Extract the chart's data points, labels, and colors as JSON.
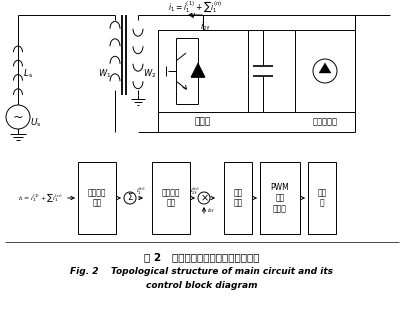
{
  "title_chinese": "图 2   主电路的拓扑结构及其控制框图",
  "title_english_line1": "Fig. 2    Topological structure of main circuit and its",
  "title_english_line2": "control block diagram",
  "bg_color": "#ffffff",
  "line_color": "#000000"
}
